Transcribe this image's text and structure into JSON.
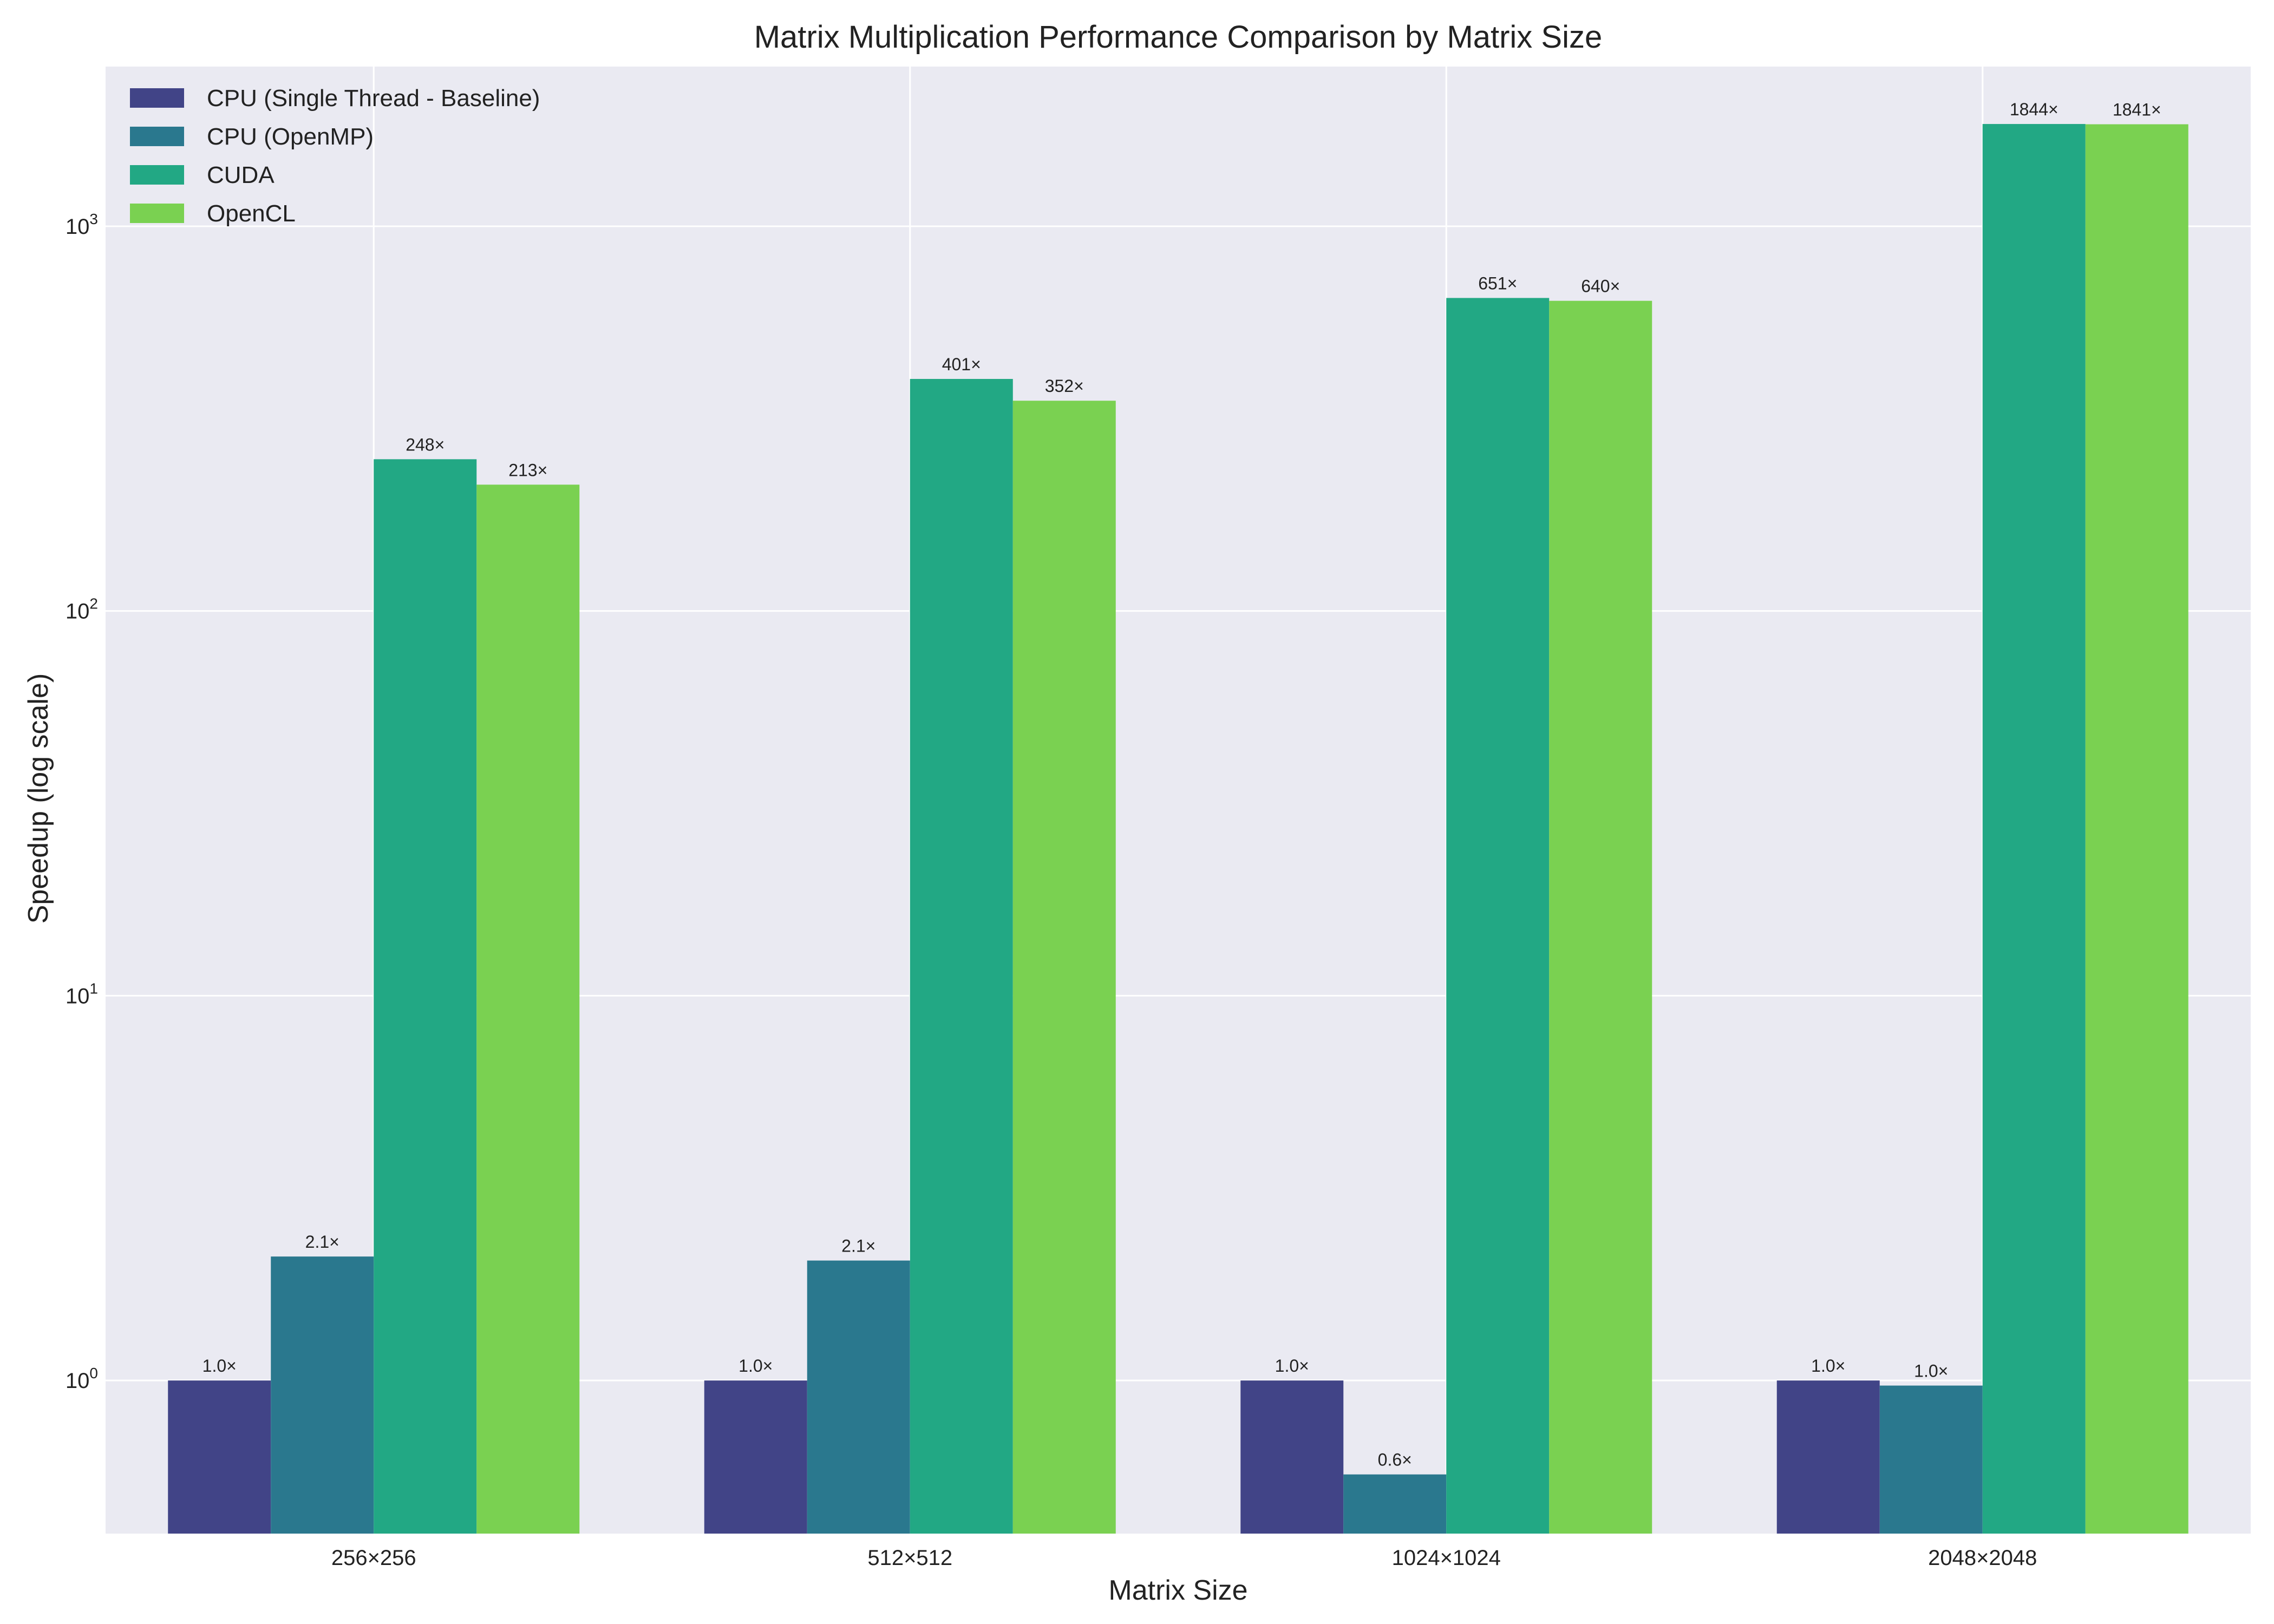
{
  "chart_data": {
    "type": "bar",
    "title": "Matrix Multiplication Performance Comparison by Matrix Size",
    "xlabel": "Matrix Size",
    "ylabel": "Speedup (log scale)",
    "yscale": "log",
    "ylim": [
      0.4,
      2600
    ],
    "yticks": [
      {
        "value": 1,
        "base": "10",
        "exp": "0"
      },
      {
        "value": 10,
        "base": "10",
        "exp": "1"
      },
      {
        "value": 100,
        "base": "10",
        "exp": "2"
      },
      {
        "value": 1000,
        "base": "10",
        "exp": "3"
      }
    ],
    "grid": true,
    "legend_position": "top-left",
    "categories": [
      "256×256",
      "512×512",
      "1024×1024",
      "2048×2048"
    ],
    "series": [
      {
        "name": "CPU (Single Thread - Baseline)",
        "color": "#414487",
        "values": [
          1.0,
          1.0,
          1.0,
          1.0
        ],
        "labels": [
          "1.0×",
          "1.0×",
          "1.0×",
          "1.0×"
        ]
      },
      {
        "name": "CPU (OpenMP)",
        "color": "#2a788e",
        "values": [
          2.1,
          2.05,
          0.57,
          0.97
        ],
        "labels": [
          "2.1×",
          "2.1×",
          "0.6×",
          "1.0×"
        ]
      },
      {
        "name": "CUDA",
        "color": "#22a884",
        "values": [
          248,
          401,
          651,
          1844
        ],
        "labels": [
          "248×",
          "401×",
          "651×",
          "1844×"
        ]
      },
      {
        "name": "OpenCL",
        "color": "#7ad151",
        "values": [
          213,
          352,
          640,
          1841
        ],
        "labels": [
          "213×",
          "352×",
          "640×",
          "1841×"
        ]
      }
    ]
  }
}
